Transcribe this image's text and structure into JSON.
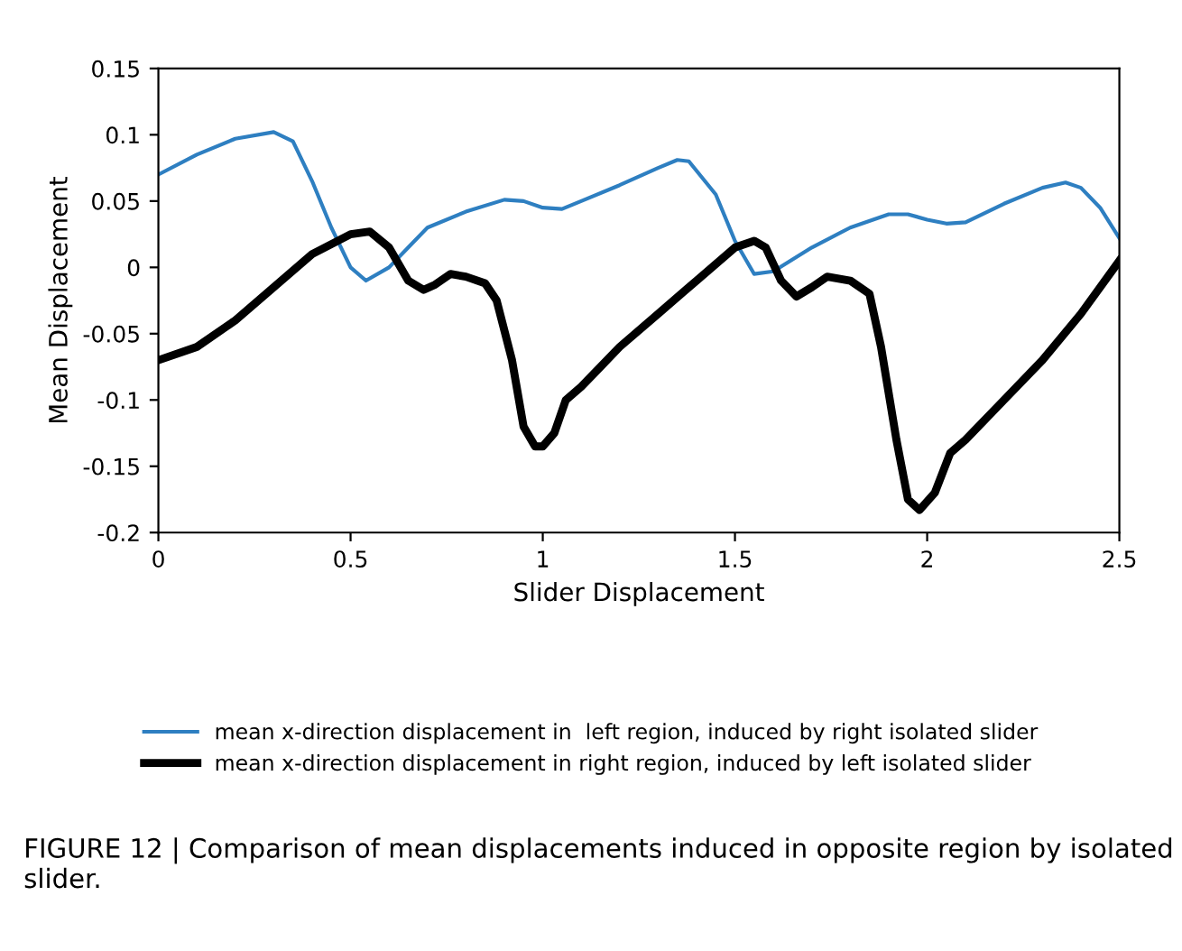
{
  "chart_data": {
    "type": "line",
    "xlabel": "Slider Displacement",
    "ylabel": "Mean Displacement",
    "xlim": [
      0,
      2.5
    ],
    "xticks": [
      0,
      0.5,
      1,
      1.5,
      2,
      2.5
    ],
    "ylim": [
      -0.2,
      0.15
    ],
    "yticks": [
      -0.2,
      -0.15,
      -0.1,
      -0.05,
      0,
      0.05,
      0.1,
      0.15
    ],
    "grid": false,
    "legend": "bottom",
    "marker": "none",
    "line_style": "solid",
    "annotations": [
      "FIGURE 12 | Comparison of mean displacements induced in opposite region by isolated slider."
    ],
    "series": [
      {
        "name": "mean x-direction displacement in  left region, induced by right isolated slider",
        "color": "#2e7fc1",
        "x": [
          0,
          0.1,
          0.2,
          0.3,
          0.35,
          0.4,
          0.45,
          0.5,
          0.54,
          0.6,
          0.65,
          0.7,
          0.8,
          0.9,
          0.95,
          1.0,
          1.05,
          1.1,
          1.2,
          1.3,
          1.35,
          1.38,
          1.45,
          1.5,
          1.55,
          1.6,
          1.7,
          1.8,
          1.9,
          1.95,
          2.0,
          2.05,
          2.1,
          2.2,
          2.3,
          2.36,
          2.4,
          2.45,
          2.5
        ],
        "values": [
          0.07,
          0.085,
          0.097,
          0.102,
          0.095,
          0.065,
          0.03,
          0.0,
          -0.01,
          0.0,
          0.015,
          0.03,
          0.042,
          0.051,
          0.05,
          0.045,
          0.044,
          0.05,
          0.062,
          0.075,
          0.081,
          0.08,
          0.055,
          0.02,
          -0.005,
          -0.003,
          0.015,
          0.03,
          0.04,
          0.04,
          0.036,
          0.033,
          0.034,
          0.048,
          0.06,
          0.064,
          0.06,
          0.045,
          0.022
        ]
      },
      {
        "name": "mean x-direction displacement in right region, induced by left isolated slider",
        "color": "#000000",
        "x": [
          0,
          0.1,
          0.2,
          0.3,
          0.4,
          0.5,
          0.55,
          0.6,
          0.65,
          0.69,
          0.72,
          0.76,
          0.8,
          0.85,
          0.88,
          0.92,
          0.95,
          0.98,
          1.0,
          1.03,
          1.06,
          1.1,
          1.15,
          1.2,
          1.3,
          1.4,
          1.5,
          1.55,
          1.58,
          1.62,
          1.66,
          1.7,
          1.74,
          1.8,
          1.85,
          1.88,
          1.92,
          1.95,
          1.98,
          2.02,
          2.06,
          2.1,
          2.2,
          2.3,
          2.4,
          2.5
        ],
        "values": [
          -0.07,
          -0.06,
          -0.04,
          -0.015,
          0.01,
          0.025,
          0.027,
          0.015,
          -0.01,
          -0.017,
          -0.013,
          -0.005,
          -0.007,
          -0.012,
          -0.025,
          -0.07,
          -0.12,
          -0.135,
          -0.135,
          -0.125,
          -0.1,
          -0.09,
          -0.075,
          -0.06,
          -0.035,
          -0.01,
          0.015,
          0.02,
          0.015,
          -0.01,
          -0.022,
          -0.015,
          -0.007,
          -0.01,
          -0.02,
          -0.06,
          -0.13,
          -0.175,
          -0.183,
          -0.17,
          -0.14,
          -0.13,
          -0.1,
          -0.07,
          -0.035,
          0.005
        ]
      }
    ]
  }
}
